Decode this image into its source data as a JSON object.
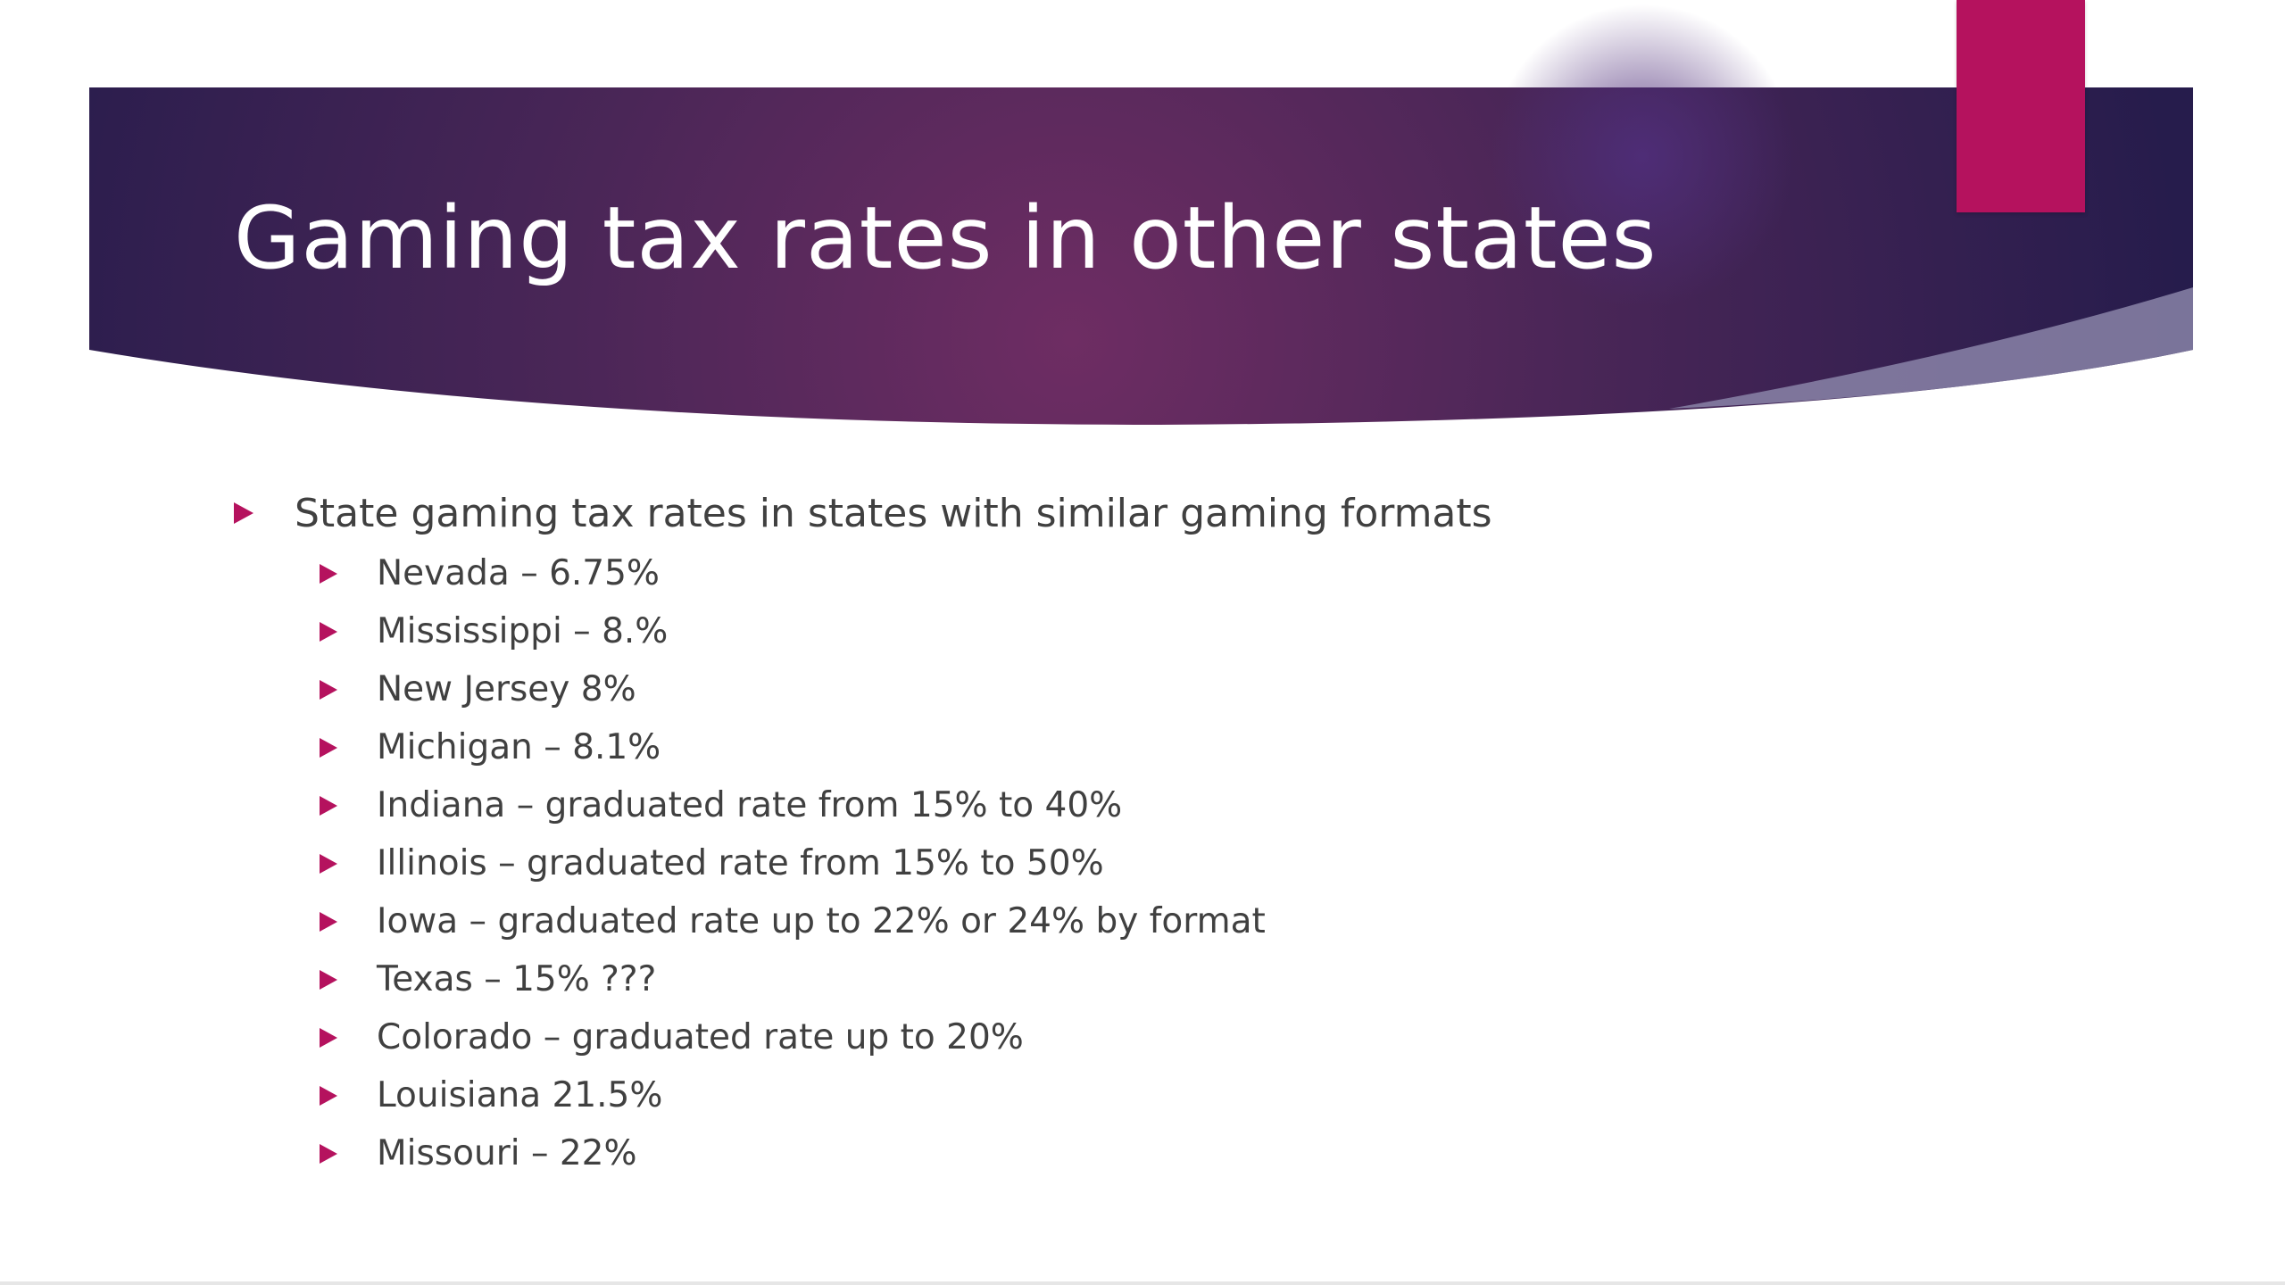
{
  "slide": {
    "title": "Gaming tax rates in other states",
    "bullets": [
      {
        "text": "State gaming tax rates in states with similar gaming formats",
        "subitems": [
          "Nevada – 6.75%",
          "Mississippi – 8.%",
          "New Jersey 8%",
          "Michigan – 8.1%",
          "Indiana – graduated rate from 15% to 40%",
          "Illinois – graduated rate from 15% to 50%",
          "Iowa – graduated rate up to 22% or 24% by format",
          "Texas – 15% ???",
          "Colorado – graduated rate up to 20%",
          "Louisiana 21.5%",
          "Missouri – 22%"
        ]
      }
    ]
  },
  "colors": {
    "banner_dark": "#2b1e4f",
    "banner_mid": "#6b2c62",
    "accent": "#b5125e",
    "bullet_arrow": "#b5125e",
    "body_text": "#404040",
    "title_text": "#ffffff"
  },
  "icons": {
    "bullet": "right-pointing-triangle-icon"
  }
}
